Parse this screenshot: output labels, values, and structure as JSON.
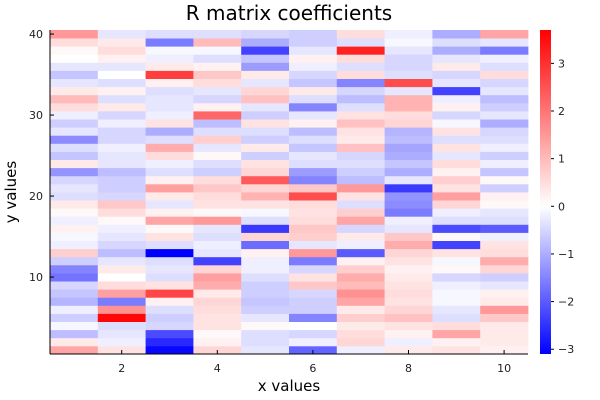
{
  "chart_data": {
    "type": "heatmap",
    "title": "R matrix coefficients",
    "xlabel": "x values",
    "ylabel": "y values",
    "x": [
      1,
      2,
      3,
      4,
      5,
      6,
      7,
      8,
      9,
      10
    ],
    "y_min": 1,
    "y_max": 40,
    "xlim": [
      0.5,
      10.5
    ],
    "ylim": [
      0.5,
      40.5
    ],
    "xticks": [
      2,
      4,
      6,
      8,
      10
    ],
    "yticks": [
      10,
      20,
      30,
      40
    ],
    "zlim": [
      -3.1,
      3.7
    ],
    "colorbar_ticks": [
      -3,
      -2,
      -1,
      0,
      1,
      2,
      3
    ],
    "colormap": [
      "#0000ff",
      "#ffffff",
      "#ff0000"
    ],
    "grid": false,
    "rows": [
      [
        1.3,
        0.4,
        -3.0,
        0.6,
        -0.3,
        -1.9,
        -0.2,
        0.3,
        0.4,
        0.2
      ],
      [
        0.3,
        -0.2,
        -2.6,
        0.2,
        -0.4,
        -0.2,
        0.6,
        -0.2,
        0.2,
        0.3
      ],
      [
        -0.8,
        -0.3,
        -2.2,
        0.1,
        -0.4,
        -0.5,
        0.5,
        0.2,
        1.3,
        0.3
      ],
      [
        -0.1,
        -0.4,
        -0.5,
        0.4,
        0.1,
        0.0,
        0.3,
        0.4,
        0.5,
        0.3
      ],
      [
        -0.6,
        3.6,
        -0.6,
        0.4,
        -0.3,
        -1.5,
        0.7,
        0.9,
        -0.4,
        0.8
      ],
      [
        -0.2,
        1.6,
        -0.4,
        0.5,
        -0.6,
        -0.6,
        0.3,
        0.6,
        -0.3,
        1.5
      ],
      [
        -0.9,
        -1.6,
        0.2,
        0.6,
        -0.7,
        -0.6,
        1.3,
        0.4,
        -0.1,
        0.3
      ],
      [
        -0.7,
        1.4,
        2.7,
        0.3,
        -0.6,
        -0.5,
        1.6,
        0.5,
        -0.1,
        0.2
      ],
      [
        -0.5,
        0.5,
        0.4,
        1.2,
        -0.6,
        0.8,
        1.0,
        0.4,
        -0.2,
        -0.3
      ],
      [
        -1.7,
        0.0,
        -0.4,
        1.4,
        -0.4,
        0.4,
        1.2,
        0.3,
        -0.5,
        -0.6
      ],
      [
        -1.5,
        0.3,
        -0.3,
        0.6,
        -0.2,
        -0.5,
        0.7,
        0.2,
        0.1,
        0.6
      ],
      [
        -0.6,
        -0.3,
        -0.4,
        -2.3,
        -0.2,
        -1.6,
        0.2,
        0.4,
        -0.1,
        1.2
      ],
      [
        0.7,
        -0.8,
        -3.1,
        -0.3,
        0.2,
        1.5,
        -2.0,
        0.6,
        0.4,
        0.5
      ],
      [
        -0.2,
        -0.5,
        -0.4,
        -0.2,
        -1.8,
        -0.3,
        -0.2,
        1.2,
        -2.3,
        0.4
      ],
      [
        -0.1,
        -0.3,
        0.4,
        -0.4,
        0.6,
        0.7,
        0.3,
        0.8,
        0.1,
        -0.2
      ],
      [
        0.2,
        -0.2,
        0.1,
        -0.3,
        -2.4,
        0.8,
        -0.5,
        -0.3,
        -2.2,
        -2.0
      ],
      [
        -0.2,
        0.1,
        1.3,
        1.5,
        -0.4,
        0.5,
        1.3,
        -0.2,
        -0.4,
        -0.4
      ],
      [
        0.1,
        0.5,
        0.2,
        0.1,
        -0.1,
        0.4,
        0.7,
        -1.6,
        -0.2,
        -0.3
      ],
      [
        0.3,
        0.8,
        -0.3,
        0.4,
        0.4,
        0.5,
        -0.4,
        -1.4,
        0.6,
        0.1
      ],
      [
        -0.4,
        -0.5,
        0.3,
        0.5,
        1.1,
        2.6,
        0.4,
        -1.3,
        1.4,
        0.2
      ],
      [
        -0.3,
        -0.6,
        1.4,
        0.8,
        0.6,
        0.8,
        1.5,
        -2.4,
        0.4,
        -0.6
      ],
      [
        -0.5,
        -0.6,
        0.2,
        0.5,
        2.4,
        -1.5,
        -0.8,
        -0.3,
        0.7,
        0.1
      ],
      [
        -1.3,
        -0.8,
        -0.4,
        -0.6,
        0.6,
        -1.2,
        -0.6,
        -1.0,
        0.2,
        -0.7
      ],
      [
        0.3,
        -0.3,
        -0.2,
        -0.4,
        0.4,
        -0.4,
        -0.4,
        -0.7,
        0.5,
        -0.2
      ],
      [
        -0.7,
        -0.3,
        0.5,
        0.1,
        -0.6,
        -0.3,
        -0.5,
        -1.0,
        -0.3,
        -0.6
      ],
      [
        -0.4,
        -0.2,
        1.2,
        -0.3,
        0.3,
        -0.7,
        0.9,
        -1.1,
        0.4,
        -0.2
      ],
      [
        -1.4,
        -0.5,
        -0.4,
        0.7,
        -0.6,
        -0.4,
        0.3,
        -0.8,
        -0.4,
        -0.4
      ],
      [
        -0.3,
        -0.5,
        -1.0,
        -0.4,
        -0.4,
        -0.8,
        0.4,
        -0.9,
        0.4,
        -0.5
      ],
      [
        -0.6,
        -0.2,
        0.4,
        -0.8,
        0.4,
        0.2,
        0.9,
        0.6,
        -0.1,
        -1.0
      ],
      [
        -0.2,
        -0.5,
        -0.2,
        2.2,
        -0.6,
        -0.3,
        0.4,
        0.5,
        -0.5,
        -0.3
      ],
      [
        0.5,
        0.3,
        -0.3,
        0.2,
        -0.3,
        -1.5,
        -0.4,
        1.1,
        0.2,
        -0.6
      ],
      [
        1.0,
        -0.4,
        -0.3,
        -0.5,
        0.9,
        -0.4,
        -0.8,
        1.1,
        -0.2,
        -0.8
      ],
      [
        0.3,
        0.2,
        -0.4,
        -0.3,
        0.6,
        0.3,
        -0.5,
        -0.3,
        -2.3,
        -0.3
      ],
      [
        -0.3,
        -0.4,
        0.2,
        0.5,
        -0.3,
        -0.7,
        -1.5,
        2.6,
        -0.3,
        -0.5
      ],
      [
        -0.7,
        0.0,
        2.8,
        0.8,
        0.3,
        -0.5,
        0.5,
        -0.4,
        -0.5,
        0.5
      ],
      [
        -0.3,
        -0.3,
        0.3,
        0.2,
        -1.2,
        -0.2,
        -0.4,
        -0.5,
        0.3,
        -0.4
      ],
      [
        0.0,
        0.2,
        -0.2,
        -0.4,
        -0.7,
        0.2,
        0.5,
        -0.5,
        -0.3,
        -0.2
      ],
      [
        0.1,
        0.5,
        -0.1,
        -0.1,
        -2.3,
        -0.3,
        3.2,
        -0.3,
        -1.0,
        -1.6
      ],
      [
        0.5,
        0.3,
        -1.6,
        1.0,
        -1.0,
        -0.6,
        -0.4,
        -0.1,
        -0.4,
        -0.3
      ],
      [
        1.5,
        -0.3,
        -0.4,
        -0.4,
        -0.5,
        -0.6,
        0.5,
        -0.2,
        -1.0,
        1.3
      ]
    ]
  }
}
